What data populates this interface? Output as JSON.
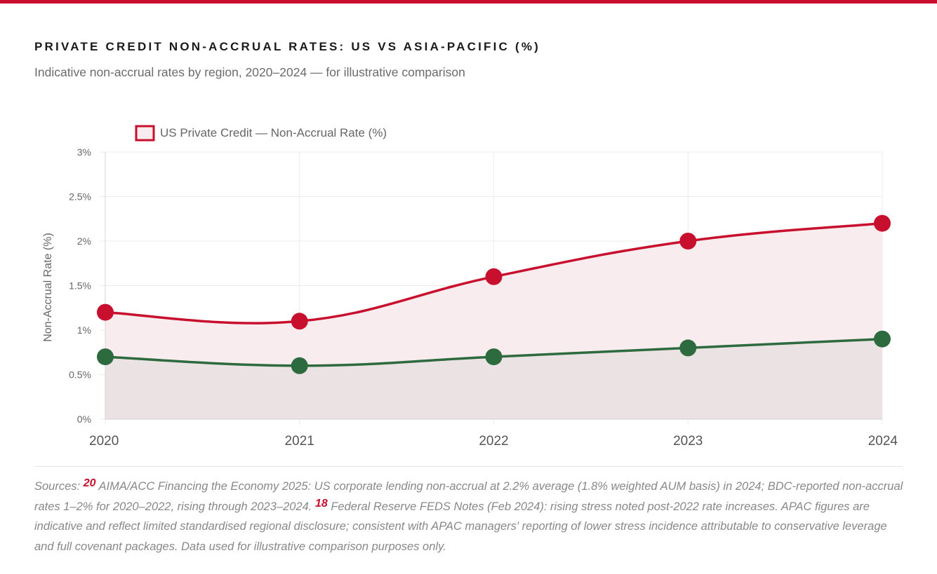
{
  "header": {
    "title": "PRIVATE CREDIT NON-ACCRUAL RATES: US VS ASIA-PACIFIC (%)",
    "subtitle": "Indicative non-accrual rates by region, 2020–2024 — for illustrative comparison"
  },
  "chart_data": {
    "type": "line",
    "x": [
      "2020",
      "2021",
      "2022",
      "2023",
      "2024"
    ],
    "series": [
      {
        "name": "US Private Credit — Non-Accrual Rate (%)",
        "values": [
          1.2,
          1.1,
          1.6,
          2.0,
          2.2
        ],
        "color": "#c8102e",
        "fill": "#f9ecee"
      },
      {
        "values": [
          0.7,
          0.6,
          0.7,
          0.8,
          0.9
        ],
        "color": "#2d6a3e",
        "fill": "#ebe3e3"
      }
    ],
    "ylabel": "Non-Accrual Rate (%)",
    "ylim": [
      0,
      3
    ],
    "yticks": [
      "0%",
      "0.5%",
      "1%",
      "1.5%",
      "2%",
      "2.5%",
      "3%"
    ],
    "grid": true,
    "legend_position": "top-left"
  },
  "footer": {
    "sources_label": "Sources:",
    "ref1": "20",
    "text1": " AIMA/ACC Financing the Economy 2025: US corporate lending non-accrual at 2.2% average (1.8% weighted AUM basis) in 2024; BDC-reported non-accrual rates 1–2% for 2020–2022, rising through 2023–2024. ",
    "ref2": "18",
    "text2": " Federal Reserve FEDS Notes (Feb 2024): rising stress noted post-2022 rate increases. APAC figures are indicative and reflect limited standardised regional disclosure; consistent with APAC managers' reporting of lower stress incidence attributable to conservative leverage and full covenant packages. Data used for illustrative comparison purposes only."
  }
}
